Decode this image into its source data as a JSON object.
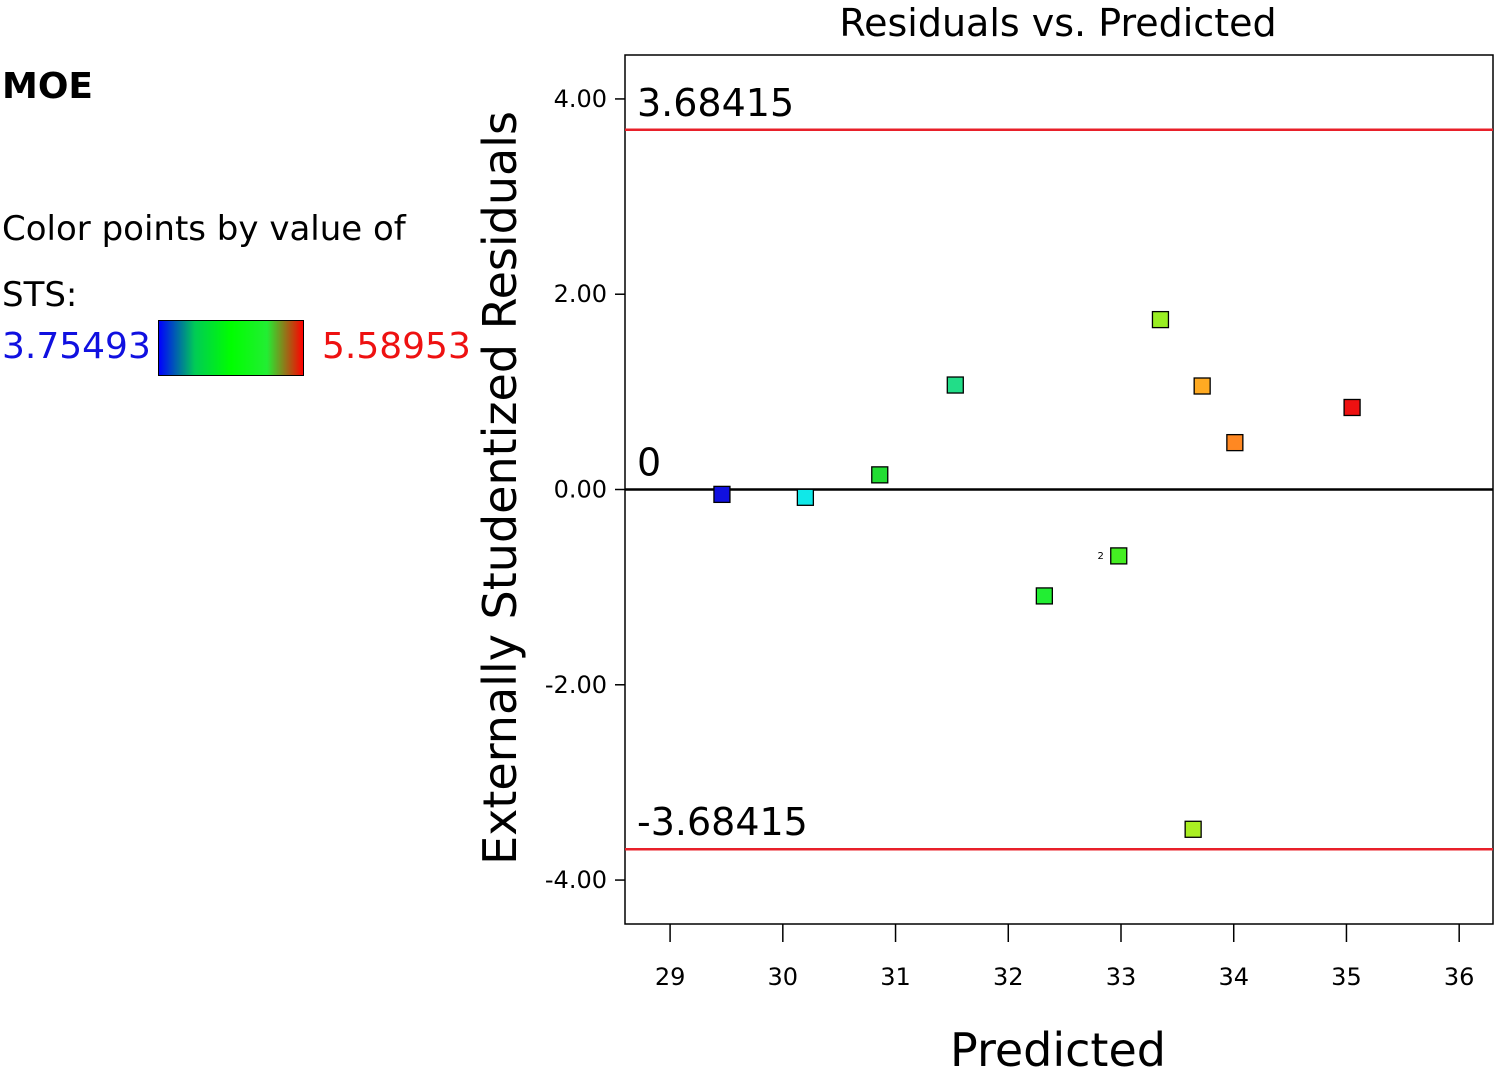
{
  "legend": {
    "title": "MOE",
    "description": "Color points by value of STS:",
    "min_label": "3.75493",
    "max_label": "5.58953",
    "min_color": "#1010e0",
    "max_color": "#ee1111",
    "gradient": [
      "#0000ff",
      "#00cc55",
      "#00ff00",
      "#22ee33",
      "#ff0000"
    ]
  },
  "chart_data": {
    "type": "scatter",
    "title": "Residuals vs. Predicted",
    "xlabel": "Predicted",
    "ylabel": "Externally Studentized Residuals",
    "xlim": [
      28.6,
      36.3
    ],
    "ylim": [
      -4.45,
      4.45
    ],
    "x_ticks": [
      "29",
      "30",
      "31",
      "32",
      "33",
      "34",
      "35",
      "36"
    ],
    "y_ticks": [
      "4.00",
      "2.00",
      "0.00",
      "-2.00",
      "-4.00"
    ],
    "reference_lines": [
      {
        "value": 3.68415,
        "label": "3.68415",
        "color": "#e8202a"
      },
      {
        "value": 0,
        "label": "0",
        "color": "#000000"
      },
      {
        "value": -3.68415,
        "label": "-3.68415",
        "color": "#e8202a"
      }
    ],
    "points": [
      {
        "x": 29.46,
        "y": -0.05,
        "color": "#1010e0"
      },
      {
        "x": 30.2,
        "y": -0.08,
        "color": "#10e8e8"
      },
      {
        "x": 30.86,
        "y": 0.15,
        "color": "#22dd33"
      },
      {
        "x": 31.53,
        "y": 1.07,
        "color": "#22dd88"
      },
      {
        "x": 32.32,
        "y": -1.09,
        "color": "#22ee33"
      },
      {
        "x": 32.98,
        "y": -0.68,
        "color": "#44ee22",
        "label": "2"
      },
      {
        "x": 33.35,
        "y": 1.74,
        "color": "#99ee22"
      },
      {
        "x": 33.72,
        "y": 1.06,
        "color": "#ffaa22"
      },
      {
        "x": 34.01,
        "y": 0.48,
        "color": "#ff8822"
      },
      {
        "x": 35.05,
        "y": 0.84,
        "color": "#ee1111"
      },
      {
        "x": 33.64,
        "y": -3.48,
        "color": "#aaee22"
      }
    ]
  }
}
